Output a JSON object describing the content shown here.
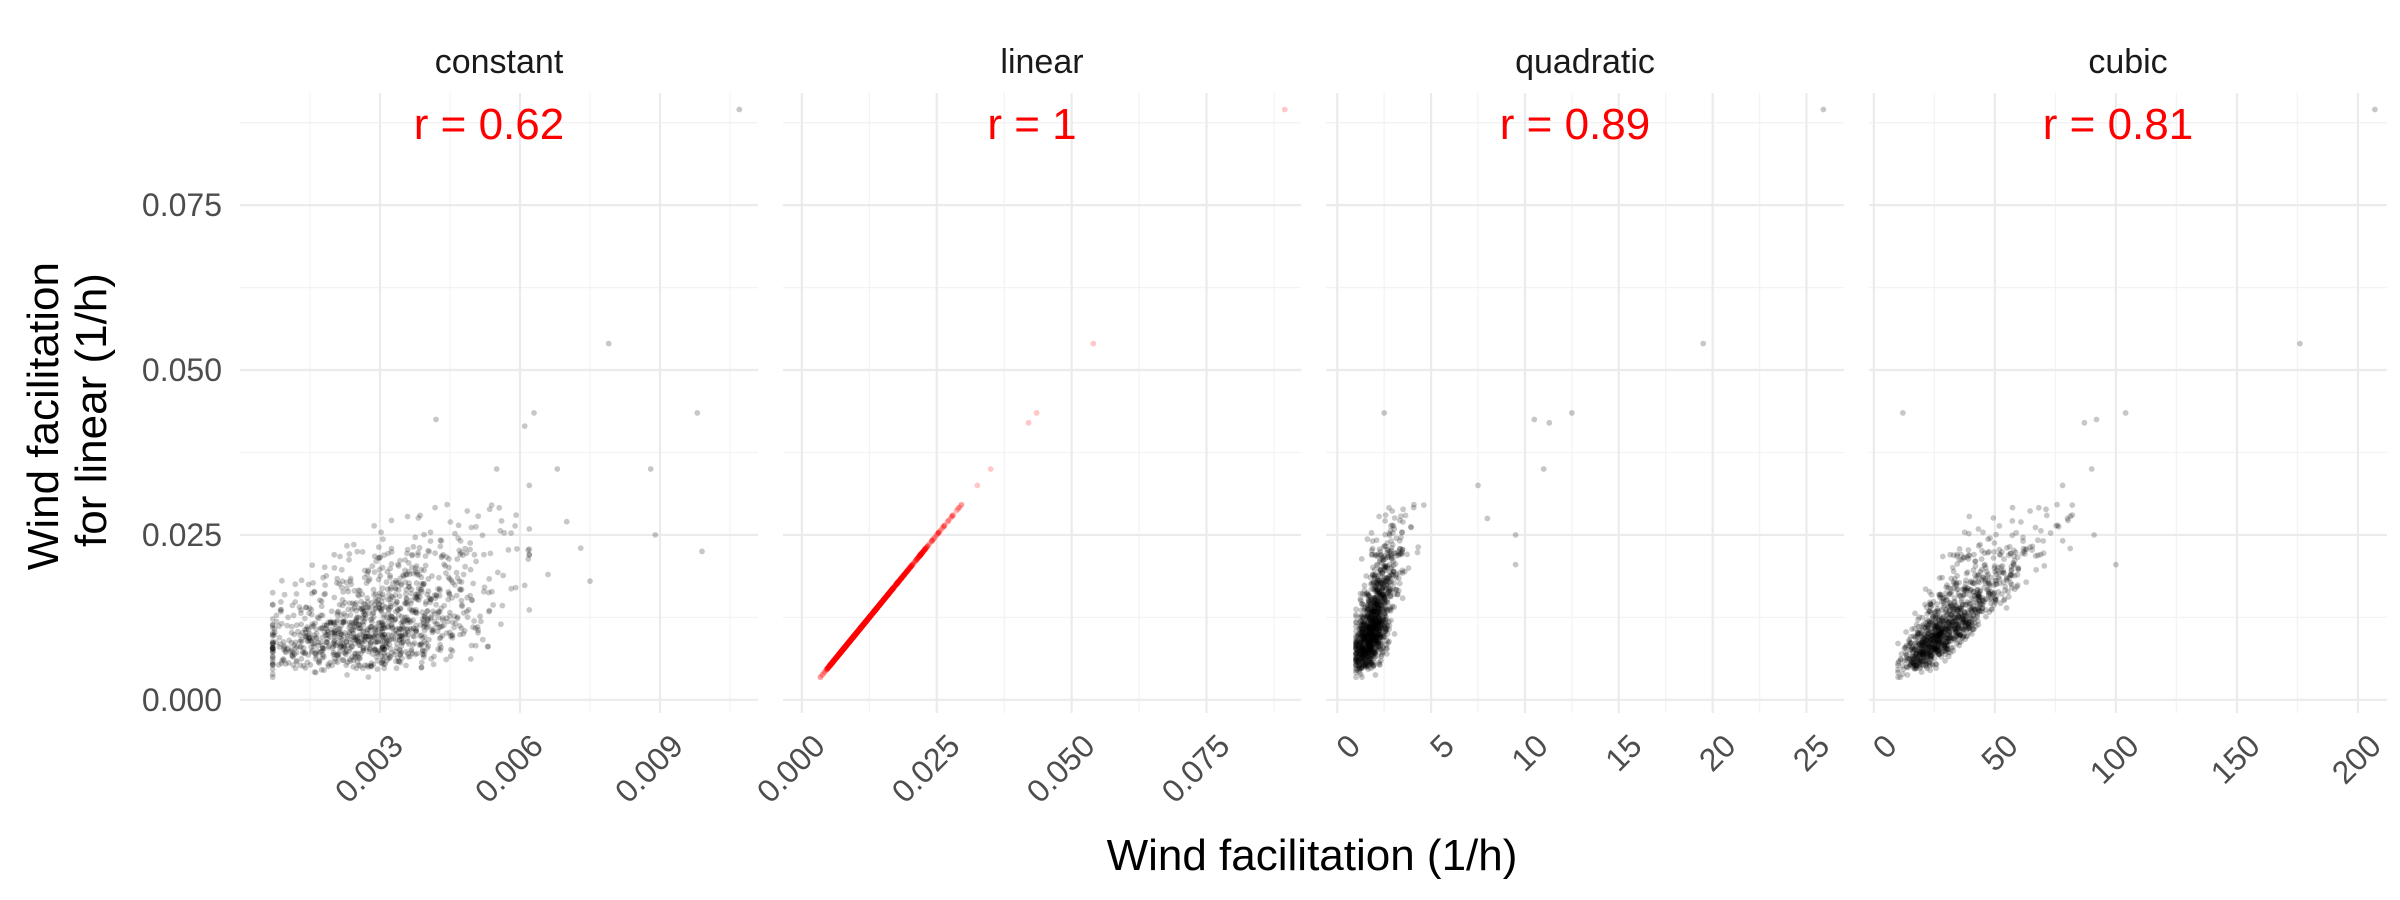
{
  "chart_data": {
    "type": "scatter",
    "xlabel": "Wind facilitation (1/h)",
    "ylabel_lines": [
      "Wind facilitation",
      "for linear (1/h)"
    ],
    "y_axis": {
      "range": [
        -0.002,
        0.092
      ],
      "ticks": [
        0.0,
        0.025,
        0.05,
        0.075
      ],
      "tick_labels": [
        "0.000",
        "0.025",
        "0.050",
        "0.075"
      ],
      "minor_ticks": [
        0.0125,
        0.0375,
        0.0625,
        0.0875
      ]
    },
    "facets": [
      {
        "title": "constant",
        "annotation": "r = 0.62",
        "point_color": "#000000",
        "x_range": [
          0.0,
          0.0111
        ],
        "x_ticks": [
          0.003,
          0.006,
          0.009
        ],
        "x_tick_labels": [
          "0.003",
          "0.006",
          "0.009"
        ],
        "x_minor_ticks": [
          0.0015,
          0.0045,
          0.0075,
          0.0105
        ],
        "outliers": [
          [
            0.0107,
            0.0895
          ],
          [
            0.0079,
            0.054
          ],
          [
            0.0098,
            0.0435
          ],
          [
            0.0063,
            0.0435
          ],
          [
            0.0042,
            0.0425
          ],
          [
            0.0061,
            0.0415
          ],
          [
            0.0055,
            0.035
          ],
          [
            0.0068,
            0.035
          ],
          [
            0.0088,
            0.035
          ],
          [
            0.0062,
            0.0325
          ],
          [
            0.0089,
            0.025
          ],
          [
            0.0099,
            0.0225
          ],
          [
            0.0073,
            0.023
          ],
          [
            0.0075,
            0.018
          ],
          [
            0.0066,
            0.019
          ],
          [
            0.007,
            0.027
          ]
        ]
      },
      {
        "title": "linear",
        "annotation": "r = 1",
        "point_color": "#ff0000",
        "x_range": [
          -0.0035,
          0.0925
        ],
        "x_ticks": [
          0.0,
          0.025,
          0.05,
          0.075
        ],
        "x_tick_labels": [
          "0.000",
          "0.025",
          "0.050",
          "0.075"
        ],
        "x_minor_ticks": [
          0.0125,
          0.0375,
          0.0625,
          0.0875
        ],
        "outliers": [
          [
            0.0895,
            0.0895
          ],
          [
            0.054,
            0.054
          ],
          [
            0.0435,
            0.0435
          ],
          [
            0.042,
            0.042
          ],
          [
            0.035,
            0.035
          ],
          [
            0.0325,
            0.0325
          ]
        ]
      },
      {
        "title": "quadratic",
        "annotation": "r = 0.89",
        "point_color": "#000000",
        "x_range": [
          -0.6,
          27.0
        ],
        "x_ticks": [
          0,
          5,
          10,
          15,
          20,
          25
        ],
        "x_tick_labels": [
          "0",
          "5",
          "10",
          "15",
          "20",
          "25"
        ],
        "x_minor_ticks": [
          2.5,
          7.5,
          12.5,
          17.5,
          22.5
        ],
        "outliers": [
          [
            25.9,
            0.0895
          ],
          [
            19.5,
            0.054
          ],
          [
            12.5,
            0.0435
          ],
          [
            10.5,
            0.0425
          ],
          [
            11.3,
            0.042
          ],
          [
            2.5,
            0.0435
          ],
          [
            11.0,
            0.035
          ],
          [
            9.5,
            0.025
          ],
          [
            9.5,
            0.0205
          ],
          [
            7.5,
            0.0325
          ],
          [
            8.0,
            0.0275
          ]
        ]
      },
      {
        "title": "cubic",
        "annotation": "r = 0.81",
        "point_color": "#000000",
        "x_range": [
          -2,
          212
        ],
        "x_ticks": [
          0,
          50,
          100,
          150,
          200
        ],
        "x_tick_labels": [
          "0",
          "50",
          "100",
          "150",
          "200"
        ],
        "x_minor_ticks": [
          25,
          75,
          125,
          175
        ],
        "outliers": [
          [
            207,
            0.0895
          ],
          [
            176,
            0.054
          ],
          [
            104,
            0.0435
          ],
          [
            92,
            0.0425
          ],
          [
            87,
            0.042
          ],
          [
            90,
            0.035
          ],
          [
            100,
            0.0205
          ],
          [
            91,
            0.025
          ],
          [
            12,
            0.0435
          ],
          [
            78,
            0.0325
          ],
          [
            80,
            0.0275
          ]
        ]
      }
    ]
  }
}
